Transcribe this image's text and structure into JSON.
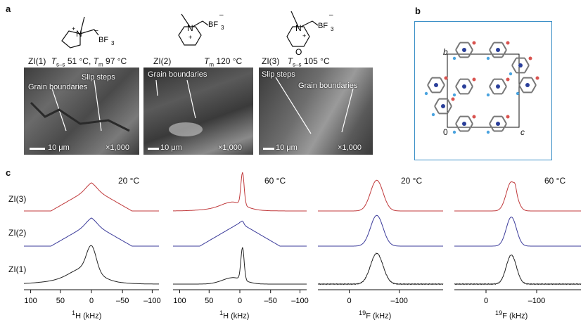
{
  "panel_a": {
    "label": "a",
    "zi1": {
      "name": "ZI(1)",
      "tss": "51 °C,",
      "tm": "97 °C",
      "tss_sym": "T",
      "tss_sub": "s–s",
      "tm_sym": "T",
      "tm_sub": "m"
    },
    "zi2": {
      "name": "ZI(2)",
      "tm": "120 °C",
      "tm_sym": "T",
      "tm_sub": "m"
    },
    "zi3": {
      "name": "ZI(3)",
      "tss": "105 °C",
      "tss_sym": "T",
      "tss_sub": "s–s"
    },
    "chem": {
      "bf3": "BF",
      "bf3_sub": "3",
      "n": "N",
      "o": "O",
      "plus": "+",
      "minus": "–"
    },
    "sem1": {
      "grain": "Grain boundaries",
      "slip": "Slip steps",
      "scale": "10 μm",
      "mag": "×1,000"
    },
    "sem2": {
      "grain": "Grain boundaries",
      "scale": "10 μm",
      "mag": "×1,000"
    },
    "sem3": {
      "grain": "Grain boundaries",
      "slip": "Slip steps",
      "scale": "10 μm",
      "mag": "×1,000"
    }
  },
  "panel_b": {
    "label": "b",
    "axis_b": "b",
    "axis_c": "c",
    "origin": "0"
  },
  "panel_c": {
    "label": "c",
    "rows": [
      "ZI(3)",
      "ZI(2)",
      "ZI(1)"
    ],
    "temps": [
      "20 °C",
      "60 °C",
      "20 °C",
      "60 °C"
    ],
    "h_ticks": [
      "100",
      "50",
      "0",
      "–50",
      "–100"
    ],
    "f_ticks": [
      "0",
      "–100"
    ],
    "xlabel_h_nuc": "1",
    "xlabel_h": "H (kHz)",
    "xlabel_f_nuc": "19",
    "xlabel_f": "F (kHz)"
  },
  "colors": {
    "zi3": "#c0393b",
    "zi2": "#3b3b9a",
    "zi1": "#222222",
    "frame_b": "#3a8fc6"
  }
}
